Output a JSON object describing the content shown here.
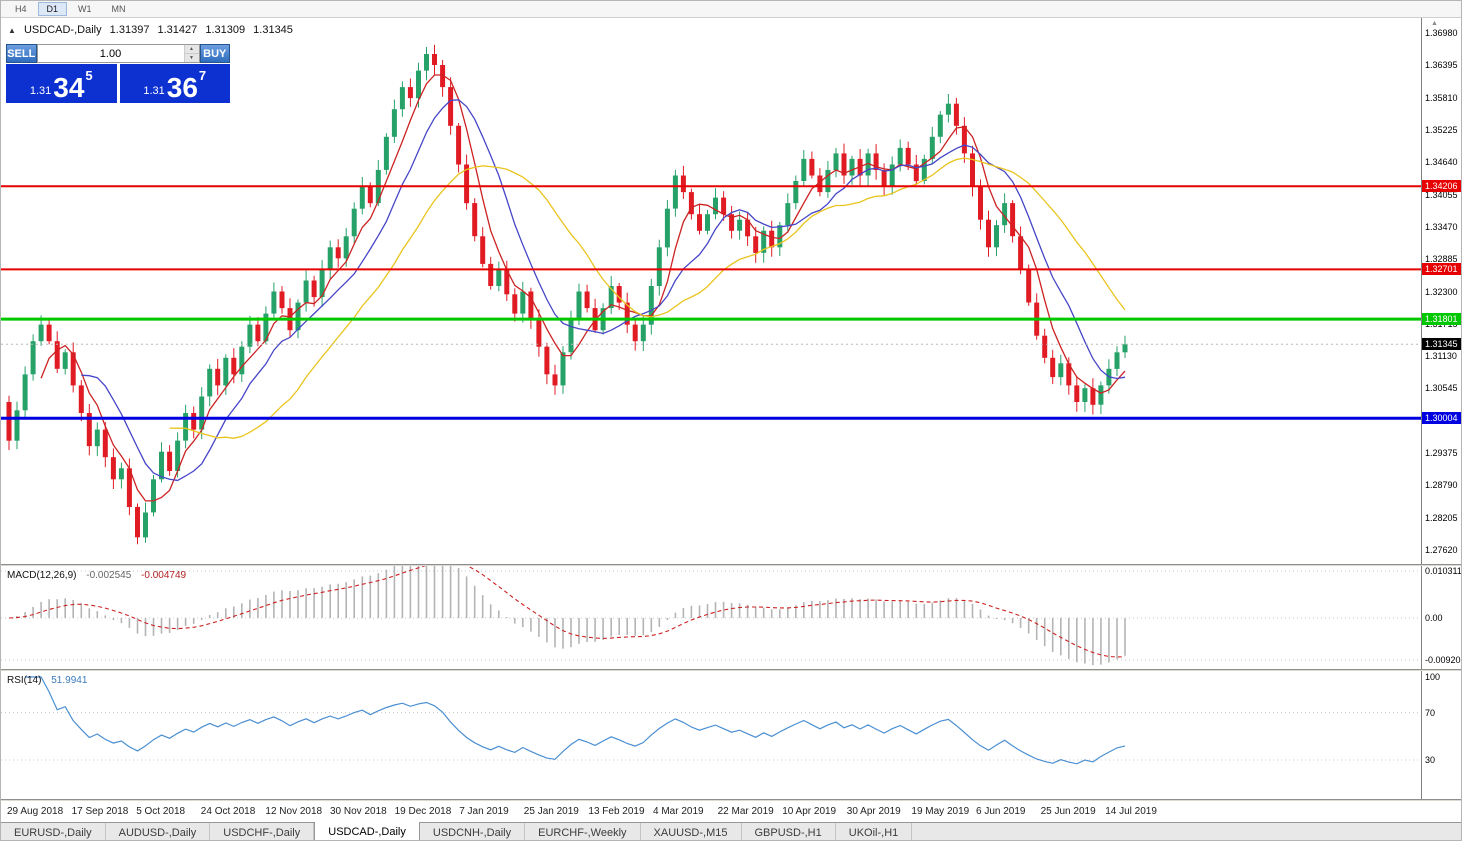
{
  "toolbar": {
    "timeframes": [
      {
        "label": "H4",
        "active": false
      },
      {
        "label": "D1",
        "active": true
      },
      {
        "label": "W1",
        "active": false
      },
      {
        "label": "MN",
        "active": false
      }
    ]
  },
  "header": {
    "symbol": "USDCAD-,Daily",
    "open": "1.31397",
    "high": "1.31427",
    "low": "1.31309",
    "close": "1.31345"
  },
  "trade_panel": {
    "sell_label": "SELL",
    "buy_label": "BUY",
    "volume": "1.00",
    "sell_price": {
      "big_figure": "1.31",
      "pips": "34",
      "point": "5"
    },
    "buy_price": {
      "big_figure": "1.31",
      "pips": "36",
      "point": "7"
    }
  },
  "icons": {
    "chart_symbol": "▲",
    "spin_up": "▲",
    "spin_down": "▼",
    "shift_marker": "▲"
  },
  "colors": {
    "candle_up": "#26a269",
    "candle_down": "#e01b24",
    "ma_fast": "#cc2222",
    "ma_mid": "#4646c8",
    "ma_slow": "#e9c41d",
    "macd_histogram": "#b4b4b4",
    "macd_signal": "#cc2222",
    "rsi_line": "#4a8fd2",
    "panel_price_blue": "#0d31d1",
    "panel_button_blue": "#2e6cbe",
    "line_red": "#e60000",
    "line_green": "#00c800",
    "line_blue": "#0000e0",
    "bid_label_black": "#000000"
  },
  "price_scale": {
    "ticks": [
      "1.36980",
      "1.36395",
      "1.35810",
      "1.35225",
      "1.34640",
      "1.34055",
      "1.33470",
      "1.32885",
      "1.32300",
      "1.31715",
      "1.31130",
      "1.30545",
      "1.29960",
      "1.29375",
      "1.28790",
      "1.28205",
      "1.27620"
    ]
  },
  "hlines": [
    {
      "value": 1.34206,
      "label": "1.34206",
      "color": "#e60000",
      "thickness": 2
    },
    {
      "value": 1.32701,
      "label": "1.32701",
      "color": "#e60000",
      "thickness": 2
    },
    {
      "value": 1.31801,
      "label": "1.31801",
      "color": "#00c800",
      "thickness": 3
    },
    {
      "value": 1.30004,
      "label": "1.30004",
      "color": "#0000e0",
      "thickness": 3
    }
  ],
  "bid": {
    "value": 1.31345,
    "label": "1.31345",
    "color": "#000000"
  },
  "macd": {
    "title": "MACD(12,26,9)",
    "main_value": "-0.002545",
    "signal_value": "-0.004749",
    "axis": [
      {
        "label": "0.010311",
        "value": 0.010311
      },
      {
        "label": "0.00",
        "value": 0
      },
      {
        "label": "-0.009203",
        "value": -0.009203
      }
    ]
  },
  "rsi": {
    "title": "RSI(14)",
    "value": "51.9941",
    "axis": [
      {
        "label": "100",
        "value": 100
      },
      {
        "label": "70",
        "value": 70
      },
      {
        "label": "30",
        "value": 30
      }
    ],
    "levels": [
      70,
      30
    ]
  },
  "date_axis": [
    "29 Aug 2018",
    "17 Sep 2018",
    "5 Oct 2018",
    "24 Oct 2018",
    "12 Nov 2018",
    "30 Nov 2018",
    "19 Dec 2018",
    "7 Jan 2019",
    "25 Jan 2019",
    "13 Feb 2019",
    "4 Mar 2019",
    "22 Mar 2019",
    "10 Apr 2019",
    "30 Apr 2019",
    "19 May 2019",
    "6 Jun 2019",
    "25 Jun 2019",
    "14 Jul 2019"
  ],
  "tabs": [
    {
      "label": "EURUSD-,Daily",
      "active": false
    },
    {
      "label": "AUDUSD-,Daily",
      "active": false
    },
    {
      "label": "USDCHF-,Daily",
      "active": false
    },
    {
      "label": "USDCAD-,Daily",
      "active": true
    },
    {
      "label": "USDCNH-,Daily",
      "active": false
    },
    {
      "label": "EURCHF-,Weekly",
      "active": false
    },
    {
      "label": "XAUUSD-,M15",
      "active": false
    },
    {
      "label": "GBPUSD-,H1",
      "active": false
    },
    {
      "label": "UKOil-,H1",
      "active": false
    }
  ],
  "chart_data": {
    "type": "candlestick",
    "title": "USDCAD-,Daily",
    "timeframe": "D1",
    "x_axis_dates": [
      "29 Aug 2018",
      "17 Sep 2018",
      "5 Oct 2018",
      "24 Oct 2018",
      "12 Nov 2018",
      "30 Nov 2018",
      "19 Dec 2018",
      "7 Jan 2019",
      "25 Jan 2019",
      "13 Feb 2019",
      "4 Mar 2019",
      "22 Mar 2019",
      "10 Apr 2019",
      "30 Apr 2019",
      "19 May 2019",
      "6 Jun 2019",
      "25 Jun 2019",
      "14 Jul 2019"
    ],
    "y_axis": {
      "min": 1.2738,
      "max": 1.3725,
      "tick_step": 0.00585
    },
    "current_bar": {
      "open": 1.31397,
      "high": 1.31427,
      "low": 1.31309,
      "close": 1.31345
    },
    "first_open": 1.303,
    "closes": [
      1.296,
      1.3015,
      1.308,
      1.314,
      1.317,
      1.314,
      1.309,
      1.312,
      1.306,
      1.301,
      1.295,
      1.298,
      1.293,
      1.289,
      1.291,
      1.284,
      1.2785,
      1.283,
      1.289,
      1.294,
      1.2905,
      1.296,
      1.301,
      1.298,
      1.304,
      1.309,
      1.306,
      1.311,
      1.308,
      1.313,
      1.317,
      1.314,
      1.319,
      1.323,
      1.32,
      1.316,
      1.321,
      1.325,
      1.322,
      1.327,
      1.331,
      1.329,
      1.333,
      1.338,
      1.342,
      1.339,
      1.345,
      1.351,
      1.356,
      1.36,
      1.358,
      1.363,
      1.366,
      1.364,
      1.36,
      1.353,
      1.346,
      1.339,
      1.333,
      1.328,
      1.324,
      1.327,
      1.3225,
      1.319,
      1.323,
      1.318,
      1.313,
      1.308,
      1.306,
      1.312,
      1.318,
      1.323,
      1.32,
      1.316,
      1.32,
      1.324,
      1.321,
      1.317,
      1.314,
      1.317,
      1.324,
      1.331,
      1.338,
      1.344,
      1.341,
      1.337,
      1.334,
      1.337,
      1.34,
      1.337,
      1.334,
      1.336,
      1.333,
      1.33,
      1.334,
      1.331,
      1.335,
      1.339,
      1.343,
      1.347,
      1.344,
      1.341,
      1.345,
      1.348,
      1.344,
      1.347,
      1.344,
      1.348,
      1.345,
      1.342,
      1.346,
      1.349,
      1.346,
      1.343,
      1.347,
      1.351,
      1.355,
      1.357,
      1.353,
      1.348,
      1.342,
      1.336,
      1.331,
      1.335,
      1.339,
      1.333,
      1.327,
      1.321,
      1.315,
      1.311,
      1.3075,
      1.31,
      1.306,
      1.303,
      1.3055,
      1.3025,
      1.306,
      1.309,
      1.312,
      1.31345
    ],
    "moving_averages": [
      {
        "period": 5,
        "color": "#cc2222"
      },
      {
        "period": 10,
        "color": "#4646c8"
      },
      {
        "period": 21,
        "color": "#e9c41d"
      }
    ],
    "horizontal_lines": [
      1.34206,
      1.32701,
      1.31801,
      1.30004
    ],
    "bid_price": 1.31345,
    "indicators": [
      {
        "name": "MACD",
        "params": [
          12,
          26,
          9
        ],
        "current": [
          -0.002545,
          -0.004749
        ],
        "axis_range": [
          -0.009203,
          0.010311
        ]
      },
      {
        "name": "RSI",
        "params": [
          14
        ],
        "current": 51.9941,
        "levels": [
          30,
          70
        ],
        "axis_range": [
          0,
          100
        ]
      }
    ]
  }
}
